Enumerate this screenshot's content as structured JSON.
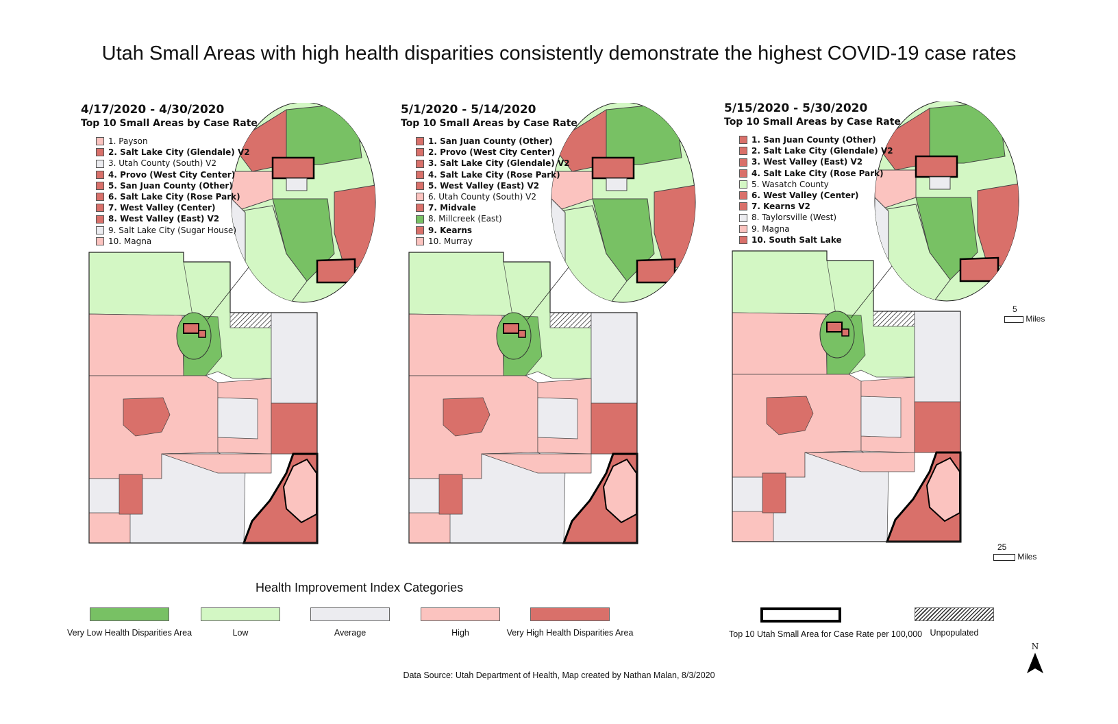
{
  "title": "Utah Small Areas with high health disparities consistently demonstrate the highest COVID-19 case rates",
  "colors": {
    "very_low": "#78c164",
    "low": "#d3f7c4",
    "average": "#ececf0",
    "high": "#fbc3bf",
    "very_high": "#d9706a",
    "top10_border": "#000000"
  },
  "panels": [
    {
      "period": "4/17/2020 - 4/30/2020",
      "subtitle": "Top 10 Small Areas by Case Rate",
      "items": [
        {
          "label": "1. Payson",
          "category": "high",
          "bold": false
        },
        {
          "label": "2. Salt Lake City (Glendale) V2",
          "category": "very_high",
          "bold": true
        },
        {
          "label": "3. Utah County (South) V2",
          "category": "average",
          "bold": false
        },
        {
          "label": "4. Provo (West City Center)",
          "category": "very_high",
          "bold": true
        },
        {
          "label": "5. San Juan County (Other)",
          "category": "very_high",
          "bold": true
        },
        {
          "label": "6. Salt Lake City (Rose Park)",
          "category": "very_high",
          "bold": true
        },
        {
          "label": "7. West Valley (Center)",
          "category": "very_high",
          "bold": true
        },
        {
          "label": "8. West Valley (East) V2",
          "category": "very_high",
          "bold": true
        },
        {
          "label": "9. Salt Lake City (Sugar House)",
          "category": "average",
          "bold": false
        },
        {
          "label": "10. Magna",
          "category": "high",
          "bold": false
        }
      ]
    },
    {
      "period": "5/1/2020 - 5/14/2020",
      "subtitle": "Top 10 Small Areas by Case Rate",
      "items": [
        {
          "label": "1. San Juan County (Other)",
          "category": "very_high",
          "bold": true
        },
        {
          "label": "2. Provo (West City Center)",
          "category": "very_high",
          "bold": true
        },
        {
          "label": "3. Salt Lake City (Glendale) V2",
          "category": "very_high",
          "bold": true
        },
        {
          "label": "4. Salt Lake City (Rose Park)",
          "category": "very_high",
          "bold": true
        },
        {
          "label": "5. West Valley (East) V2",
          "category": "very_high",
          "bold": true
        },
        {
          "label": "6. Utah County (South) V2",
          "category": "high",
          "bold": false
        },
        {
          "label": "7. Midvale",
          "category": "very_high",
          "bold": true
        },
        {
          "label": "8. Millcreek (East)",
          "category": "very_low",
          "bold": false
        },
        {
          "label": "9. Kearns",
          "category": "very_high",
          "bold": true
        },
        {
          "label": "10. Murray",
          "category": "high",
          "bold": false
        }
      ]
    },
    {
      "period": "5/15/2020 - 5/30/2020",
      "subtitle": "Top 10 Small Areas by Case Rate",
      "items": [
        {
          "label": "1. San Juan County (Other)",
          "category": "very_high",
          "bold": true
        },
        {
          "label": "2. Salt Lake City (Glendale) V2",
          "category": "very_high",
          "bold": true
        },
        {
          "label": "3. West Valley (East) V2",
          "category": "very_high",
          "bold": true
        },
        {
          "label": "4. Salt Lake City (Rose Park)",
          "category": "very_high",
          "bold": true
        },
        {
          "label": "5. Wasatch County",
          "category": "low",
          "bold": false
        },
        {
          "label": "6. West Valley (Center)",
          "category": "very_high",
          "bold": true
        },
        {
          "label": "7. Kearns V2",
          "category": "very_high",
          "bold": true
        },
        {
          "label": "8. Taylorsville (West)",
          "category": "average",
          "bold": false
        },
        {
          "label": "9. Magna",
          "category": "high",
          "bold": false
        },
        {
          "label": "10. South Salt Lake",
          "category": "very_high",
          "bold": true
        }
      ]
    }
  ],
  "scalebars": {
    "inset": {
      "value": "5",
      "unit": "Miles"
    },
    "main": {
      "value": "25",
      "unit": "Miles"
    }
  },
  "legend": {
    "title": "Health Improvement Index Categories",
    "entries": [
      {
        "label": "Very Low Health Disparities Area",
        "style": "very_low"
      },
      {
        "label": "Low",
        "style": "low"
      },
      {
        "label": "Average",
        "style": "average"
      },
      {
        "label": "High",
        "style": "high"
      },
      {
        "label": "Very High Health Disparities Area",
        "style": "very_high"
      },
      {
        "label": "Top 10 Utah Small Area for Case Rate per 100,000",
        "style": "top10"
      },
      {
        "label": "Unpopulated",
        "style": "unpopulated"
      }
    ]
  },
  "north_label": "N",
  "source": "Data Source: Utah Department of Health, Map created by Nathan Malan, 8/3/2020"
}
